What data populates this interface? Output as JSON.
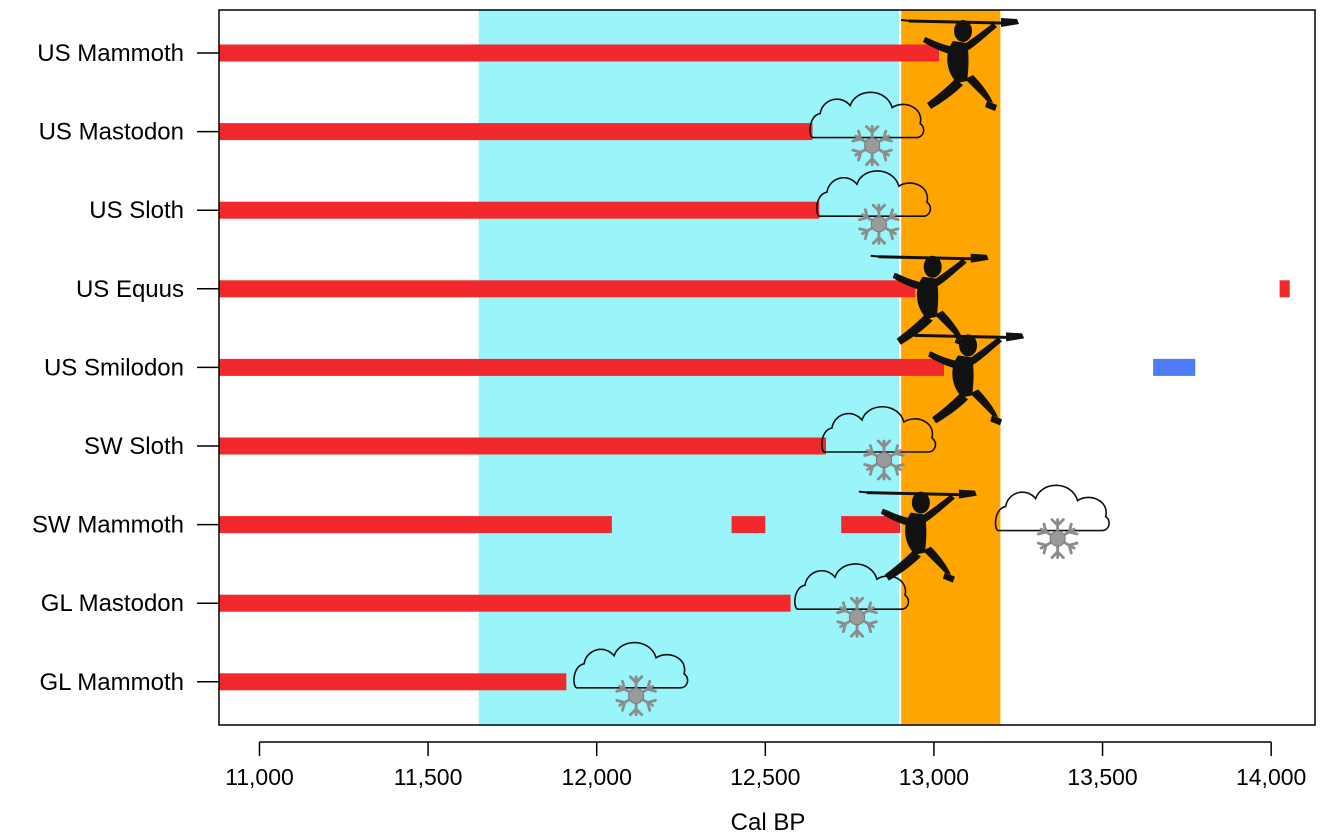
{
  "chart_data": {
    "type": "bar",
    "xlabel": "Cal BP",
    "ylabel": "",
    "title": "",
    "xlim": [
      10880,
      14130
    ],
    "x_ticks": [
      11000,
      11500,
      12000,
      12500,
      13000,
      13500,
      14000
    ],
    "x_tick_labels": [
      "11,000",
      "11,500",
      "12,000",
      "12,500",
      "13,000",
      "13,500",
      "14,000"
    ],
    "grid": false,
    "categories": [
      "US Mammoth",
      "US Mastodon",
      "US Sloth",
      "US Equus",
      "US Smilodon",
      "SW Sloth",
      "SW Mammoth",
      "GL Mastodon",
      "GL Mammoth"
    ],
    "shaded_periods": [
      {
        "from": 11650,
        "to": 12900,
        "color": "#99f5f9"
      },
      {
        "from": 12900,
        "to": 13200,
        "color": "#ffa500"
      }
    ],
    "series": [
      {
        "color": "#f2292c",
        "segments": [
          {
            "category": "US Mammoth",
            "from": 10880,
            "to": 13015
          },
          {
            "category": "US Mastodon",
            "from": 10880,
            "to": 12640
          },
          {
            "category": "US Sloth",
            "from": 10880,
            "to": 12660
          },
          {
            "category": "US Equus",
            "from": 10880,
            "to": 12945
          },
          {
            "category": "US Equus",
            "from": 14025,
            "to": 14055
          },
          {
            "category": "US Smilodon",
            "from": 10880,
            "to": 13030
          },
          {
            "category": "SW Sloth",
            "from": 10880,
            "to": 12680
          },
          {
            "category": "SW Mammoth",
            "from": 10880,
            "to": 12045
          },
          {
            "category": "SW Mammoth",
            "from": 12400,
            "to": 12500
          },
          {
            "category": "SW Mammoth",
            "from": 12725,
            "to": 12900
          },
          {
            "category": "GL Mastodon",
            "from": 10880,
            "to": 12575
          },
          {
            "category": "GL Mammoth",
            "from": 10880,
            "to": 11910
          }
        ]
      },
      {
        "color": "#4e7cf5",
        "segments": [
          {
            "category": "US Smilodon",
            "from": 13650,
            "to": 13775
          }
        ]
      }
    ],
    "icons": [
      {
        "type": "hunter-icon",
        "category": "US Mammoth",
        "x": 13110
      },
      {
        "type": "hunter-icon",
        "category": "US Equus",
        "x": 13020
      },
      {
        "type": "hunter-icon",
        "category": "US Smilodon",
        "x": 13125
      },
      {
        "type": "hunter-icon",
        "category": "SW Mammoth",
        "x": 12985
      },
      {
        "type": "cold-cloud-icon",
        "category": "US Mastodon",
        "x": 12805
      },
      {
        "type": "cold-cloud-icon",
        "category": "US Sloth",
        "x": 12825
      },
      {
        "type": "cold-cloud-icon",
        "category": "SW Sloth",
        "x": 12840
      },
      {
        "type": "cold-cloud-icon",
        "category": "SW Mammoth",
        "x": 13355
      },
      {
        "type": "cold-cloud-icon",
        "category": "GL Mastodon",
        "x": 12760
      },
      {
        "type": "cold-cloud-icon",
        "category": "GL Mammoth",
        "x": 12105
      }
    ]
  }
}
